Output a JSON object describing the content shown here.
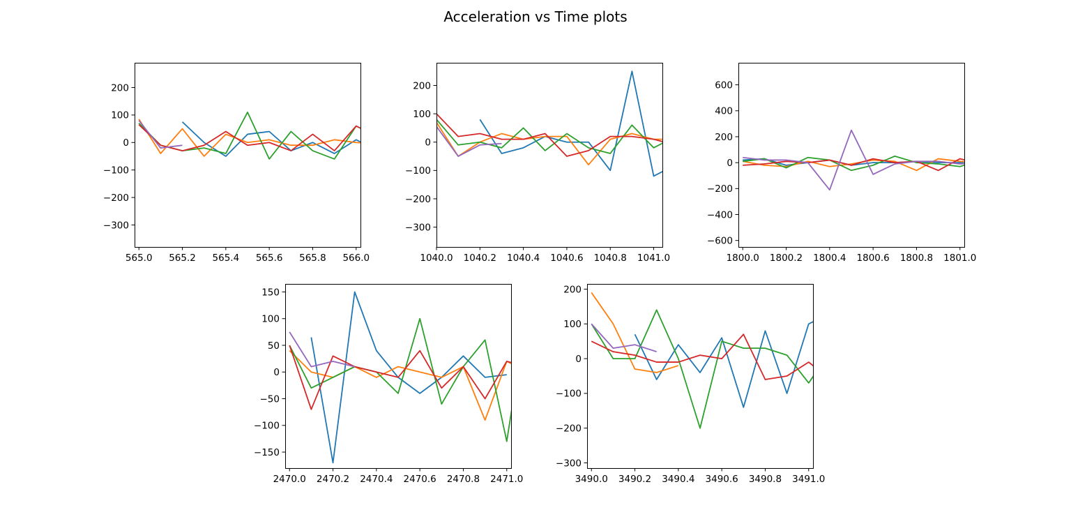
{
  "figure": {
    "title": "Acceleration vs Time plots",
    "colors": [
      "#1f77b4",
      "#ff7f0e",
      "#2ca02c",
      "#d62728",
      "#9467bd"
    ]
  },
  "chart_data": [
    {
      "type": "line",
      "xlim": [
        564.98,
        566.02
      ],
      "ylim": [
        -380,
        290
      ],
      "xticks": [
        565.0,
        565.2,
        565.4,
        565.6,
        565.8,
        566.0
      ],
      "xtick_labels": [
        "565.0",
        "565.2",
        "565.4",
        "565.6",
        "565.8",
        "566.0"
      ],
      "yticks": [
        200,
        100,
        0,
        -100,
        -200,
        -300
      ],
      "ytick_labels": [
        "200",
        "100",
        "0",
        "−100",
        "−200",
        "−300"
      ],
      "series": [
        {
          "x": [
            565.2,
            565.3,
            565.4,
            565.5,
            565.6,
            565.7,
            565.8,
            565.9,
            566.0,
            566.1
          ],
          "y": [
            75,
            0,
            -50,
            30,
            40,
            -30,
            0,
            -40,
            10,
            -30
          ]
        },
        {
          "x": [
            565.0,
            565.1,
            565.2,
            565.3,
            565.4,
            565.5,
            565.6,
            565.7,
            565.8,
            565.9,
            566.0,
            566.1
          ],
          "y": [
            85,
            -40,
            50,
            -50,
            30,
            0,
            10,
            -10,
            -10,
            10,
            0,
            -5
          ]
        },
        {
          "x": [
            565.0,
            565.1,
            565.2,
            565.3,
            565.4,
            565.5,
            565.6,
            565.7,
            565.8,
            565.9,
            566.0,
            566.1
          ],
          "y": [
            70,
            -10,
            -30,
            -20,
            -40,
            110,
            -60,
            40,
            -30,
            -60,
            60,
            20
          ]
        },
        {
          "x": [
            565.0,
            565.1,
            565.2,
            565.3,
            565.4,
            565.5,
            565.6,
            565.7,
            565.8,
            565.9,
            566.0,
            566.1
          ],
          "y": [
            65,
            -10,
            -30,
            -10,
            40,
            -10,
            0,
            -30,
            30,
            -30,
            60,
            20
          ]
        },
        {
          "x": [
            565.0,
            565.1,
            565.2
          ],
          "y": [
            80,
            -20,
            -10
          ]
        }
      ]
    },
    {
      "type": "line",
      "xlim": [
        1040.0,
        1041.04
      ],
      "ylim": [
        -370,
        280
      ],
      "xticks": [
        1040.0,
        1040.2,
        1040.4,
        1040.6,
        1040.8,
        1041.0
      ],
      "xtick_labels": [
        "1040.0",
        "1040.2",
        "1040.4",
        "1040.6",
        "1040.8",
        "1041.0"
      ],
      "yticks": [
        200,
        100,
        0,
        -100,
        -200,
        -300
      ],
      "ytick_labels": [
        "200",
        "100",
        "0",
        "−100",
        "−200",
        "−300"
      ],
      "series": [
        {
          "x": [
            1040.2,
            1040.3,
            1040.4,
            1040.5,
            1040.6,
            1040.7,
            1040.8,
            1040.9,
            1041.0,
            1041.1
          ],
          "y": [
            80,
            -40,
            -20,
            20,
            0,
            0,
            -100,
            250,
            -120,
            -80
          ]
        },
        {
          "x": [
            1040.0,
            1040.1,
            1040.2,
            1040.3,
            1040.4,
            1040.5,
            1040.6,
            1040.7,
            1040.8,
            1040.9,
            1041.0,
            1041.1
          ],
          "y": [
            70,
            -50,
            0,
            30,
            10,
            20,
            20,
            -80,
            10,
            30,
            10,
            10
          ]
        },
        {
          "x": [
            1040.0,
            1040.1,
            1040.2,
            1040.3,
            1040.4,
            1040.5,
            1040.6,
            1040.7,
            1040.8,
            1040.9,
            1041.0,
            1041.1
          ],
          "y": [
            80,
            -10,
            0,
            -20,
            50,
            -30,
            30,
            -20,
            -40,
            60,
            -20,
            20
          ]
        },
        {
          "x": [
            1040.0,
            1040.1,
            1040.2,
            1040.3,
            1040.4,
            1040.5,
            1040.6,
            1040.7,
            1040.8,
            1040.9,
            1041.0,
            1041.1
          ],
          "y": [
            100,
            20,
            30,
            10,
            10,
            30,
            -50,
            -30,
            20,
            20,
            10,
            -10
          ]
        },
        {
          "x": [
            1040.0,
            1040.1,
            1040.2,
            1040.3
          ],
          "y": [
            55,
            -50,
            -10,
            -5
          ]
        }
      ]
    },
    {
      "type": "line",
      "xlim": [
        1799.98,
        1801.02
      ],
      "ylim": [
        -650,
        770
      ],
      "xticks": [
        1800.0,
        1800.2,
        1800.4,
        1800.6,
        1800.8,
        1801.0
      ],
      "xtick_labels": [
        "1800.0",
        "1800.2",
        "1800.4",
        "1800.6",
        "1800.8",
        "1801.0"
      ],
      "yticks": [
        600,
        400,
        200,
        0,
        -200,
        -400,
        -600
      ],
      "ytick_labels": [
        "600",
        "400",
        "200",
        "0",
        "−200",
        "−400",
        "−600"
      ],
      "series": [
        {
          "x": [
            1800.0,
            1800.1,
            1800.2,
            1800.3,
            1800.4,
            1800.5,
            1800.6,
            1800.7,
            1800.8,
            1800.9,
            1801.0,
            1801.1
          ],
          "y": [
            20,
            30,
            -20,
            0,
            20,
            -20,
            0,
            0,
            10,
            0,
            0,
            10
          ]
        },
        {
          "x": [
            1800.0,
            1800.1,
            1800.2,
            1800.3,
            1800.4,
            1800.5,
            1800.6,
            1800.7,
            1800.8,
            1800.9,
            1801.0,
            1801.1
          ],
          "y": [
            10,
            -20,
            -30,
            10,
            -30,
            -10,
            20,
            10,
            -60,
            30,
            10,
            0
          ]
        },
        {
          "x": [
            1800.0,
            1800.1,
            1800.2,
            1800.3,
            1800.4,
            1800.5,
            1800.6,
            1800.7,
            1800.8,
            1800.9,
            1801.0,
            1801.1
          ],
          "y": [
            10,
            30,
            -40,
            40,
            20,
            -60,
            -20,
            50,
            0,
            -10,
            -30,
            20
          ]
        },
        {
          "x": [
            1800.0,
            1800.1,
            1800.2,
            1800.3,
            1800.4,
            1800.5,
            1800.6,
            1800.7,
            1800.8,
            1800.9,
            1801.0,
            1801.1
          ],
          "y": [
            -20,
            -10,
            10,
            0,
            20,
            -20,
            30,
            0,
            10,
            -60,
            30,
            -10
          ]
        },
        {
          "x": [
            1800.0,
            1800.1,
            1800.2,
            1800.3,
            1800.4,
            1800.5,
            1800.6,
            1800.7,
            1800.8,
            1800.9,
            1801.0,
            1801.1
          ],
          "y": [
            40,
            20,
            20,
            0,
            -210,
            250,
            -90,
            -10,
            10,
            10,
            -10,
            0
          ]
        }
      ]
    },
    {
      "type": "line",
      "xlim": [
        2469.98,
        2471.02
      ],
      "ylim": [
        -180,
        165
      ],
      "xticks": [
        2470.0,
        2470.2,
        2470.4,
        2470.6,
        2470.8,
        2471.0
      ],
      "xtick_labels": [
        "2470.0",
        "2470.2",
        "2470.4",
        "2470.6",
        "2470.8",
        "2471.0"
      ],
      "yticks": [
        150,
        100,
        50,
        0,
        -50,
        -100,
        -150
      ],
      "ytick_labels": [
        "150",
        "100",
        "50",
        "0",
        "−50",
        "−100",
        "−150"
      ],
      "series": [
        {
          "x": [
            2470.1,
            2470.2,
            2470.3,
            2470.4,
            2470.5,
            2470.6,
            2470.7,
            2470.8,
            2470.9,
            2471.0
          ],
          "y": [
            65,
            -170,
            150,
            40,
            -10,
            -40,
            -10,
            30,
            -10,
            -5
          ]
        },
        {
          "x": [
            2470.0,
            2470.1,
            2470.2,
            2470.3,
            2470.4,
            2470.5,
            2470.6,
            2470.7,
            2470.8,
            2470.9,
            2471.0,
            2471.1
          ],
          "y": [
            40,
            0,
            -10,
            10,
            -10,
            10,
            0,
            -10,
            10,
            -90,
            20,
            0
          ]
        },
        {
          "x": [
            2470.0,
            2470.1,
            2470.2,
            2470.3,
            2470.4,
            2470.5,
            2470.6,
            2470.7,
            2470.8,
            2470.9,
            2471.0,
            2471.1
          ],
          "y": [
            50,
            -30,
            -10,
            10,
            0,
            -40,
            100,
            -60,
            10,
            60,
            -130,
            130
          ]
        },
        {
          "x": [
            2470.0,
            2470.1,
            2470.2,
            2470.3,
            2470.4,
            2470.5,
            2470.6,
            2470.7,
            2470.8,
            2470.9,
            2471.0,
            2471.1
          ],
          "y": [
            50,
            -70,
            30,
            10,
            0,
            -10,
            40,
            -30,
            10,
            -50,
            20,
            10
          ]
        },
        {
          "x": [
            2470.0,
            2470.1,
            2470.2,
            2470.3
          ],
          "y": [
            75,
            10,
            20,
            10
          ]
        }
      ]
    },
    {
      "type": "line",
      "xlim": [
        3489.98,
        3491.02
      ],
      "ylim": [
        -315,
        215
      ],
      "xticks": [
        3490.0,
        3490.2,
        3490.4,
        3490.6,
        3490.8,
        3491.0
      ],
      "xtick_labels": [
        "3490.0",
        "3490.2",
        "3490.4",
        "3490.6",
        "3490.8",
        "3491.0"
      ],
      "yticks": [
        200,
        100,
        0,
        -100,
        -200,
        -300
      ],
      "ytick_labels": [
        "200",
        "100",
        "0",
        "−100",
        "−200",
        "−300"
      ],
      "series": [
        {
          "x": [
            3490.2,
            3490.3,
            3490.4,
            3490.5,
            3490.6,
            3490.7,
            3490.8,
            3490.9,
            3491.0,
            3491.1
          ],
          "y": [
            70,
            -60,
            40,
            -40,
            60,
            -140,
            80,
            -100,
            100,
            130
          ]
        },
        {
          "x": [
            3490.0,
            3490.1,
            3490.2,
            3490.3,
            3490.4
          ],
          "y": [
            190,
            100,
            -30,
            -40,
            -20
          ]
        },
        {
          "x": [
            3490.0,
            3490.1,
            3490.2,
            3490.3,
            3490.4,
            3490.5,
            3490.6,
            3490.7,
            3490.8,
            3490.9,
            3491.0,
            3491.1
          ],
          "y": [
            100,
            0,
            0,
            140,
            0,
            -200,
            50,
            30,
            30,
            10,
            -70,
            20
          ]
        },
        {
          "x": [
            3490.0,
            3490.1,
            3490.2,
            3490.3,
            3490.4,
            3490.5,
            3490.6,
            3490.7,
            3490.8,
            3490.9,
            3491.0,
            3491.1
          ],
          "y": [
            50,
            20,
            10,
            -10,
            -10,
            10,
            0,
            70,
            -60,
            -50,
            -10,
            -60
          ]
        },
        {
          "x": [
            3490.0,
            3490.1,
            3490.2,
            3490.3
          ],
          "y": [
            100,
            30,
            40,
            20
          ]
        }
      ]
    }
  ]
}
